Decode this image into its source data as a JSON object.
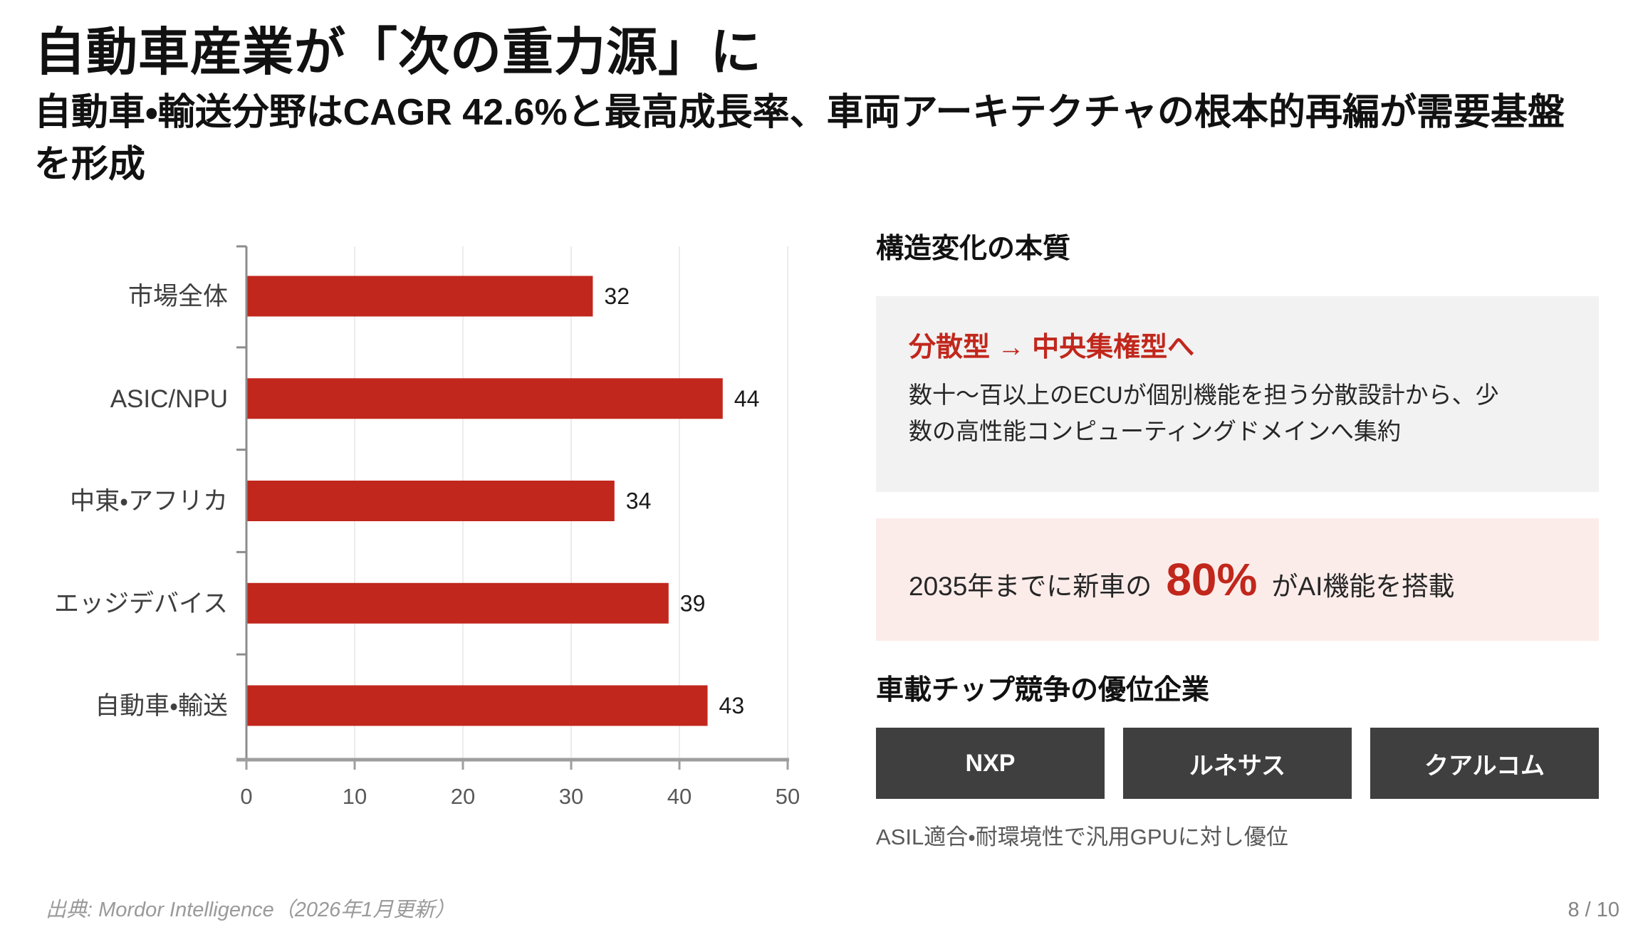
{
  "header": {
    "title": "自動車産業が「次の重力源」に",
    "subtitle": "自動車・輸送分野はCAGR 42.6%と最高成長率、車両アーキテクチャの根本的再編が需要基盤を形成"
  },
  "chart_data": {
    "type": "bar",
    "orientation": "horizontal",
    "title": "",
    "categories": [
      "市場全体",
      "ASIC/NPU",
      "中東・アフリカ",
      "エッジデバイス",
      "自動車・輸送"
    ],
    "values": [
      32,
      44,
      34,
      39,
      42.6
    ],
    "value_labels": [
      "32",
      "44",
      "34",
      "39",
      "43"
    ],
    "xlabel": "",
    "ylabel": "",
    "xlim": [
      0,
      50
    ],
    "xticks": [
      0,
      10,
      20,
      30,
      40,
      50
    ],
    "grid": true,
    "legend": false,
    "bar_color": "#c1271c"
  },
  "right_panel": {
    "structure_heading": "構造変化の本質",
    "shift_box": {
      "headline": "分散型 → 中央集権型へ",
      "body": "数十〜百以上のECUが個別機能を担う分散設計から、少数の高性能コンピューティングドメインへ集約"
    },
    "stat_box": {
      "prefix": "2035年までに新車の",
      "value": "80%",
      "suffix": "がAI機能を搭載"
    },
    "chips_heading": "車載チップ競争の優位企業",
    "companies": [
      "NXP",
      "ルネサス",
      "クアルコム"
    ],
    "chips_caption": "ASIL適合・耐環境性で汎用GPUに対し優位"
  },
  "footer": {
    "source": "出典: Mordor Intelligence（2026年1月更新）",
    "page": "8 / 10"
  },
  "colors": {
    "accent_red": "#c1271c",
    "box_gray": "#f2f2f2",
    "box_pink": "#fbecea",
    "chip_dark": "#3f3f3f",
    "text_dark": "#1a1a1a",
    "text_body": "#262626",
    "text_muted": "#595959",
    "axis_gray": "#8c8c8c"
  }
}
